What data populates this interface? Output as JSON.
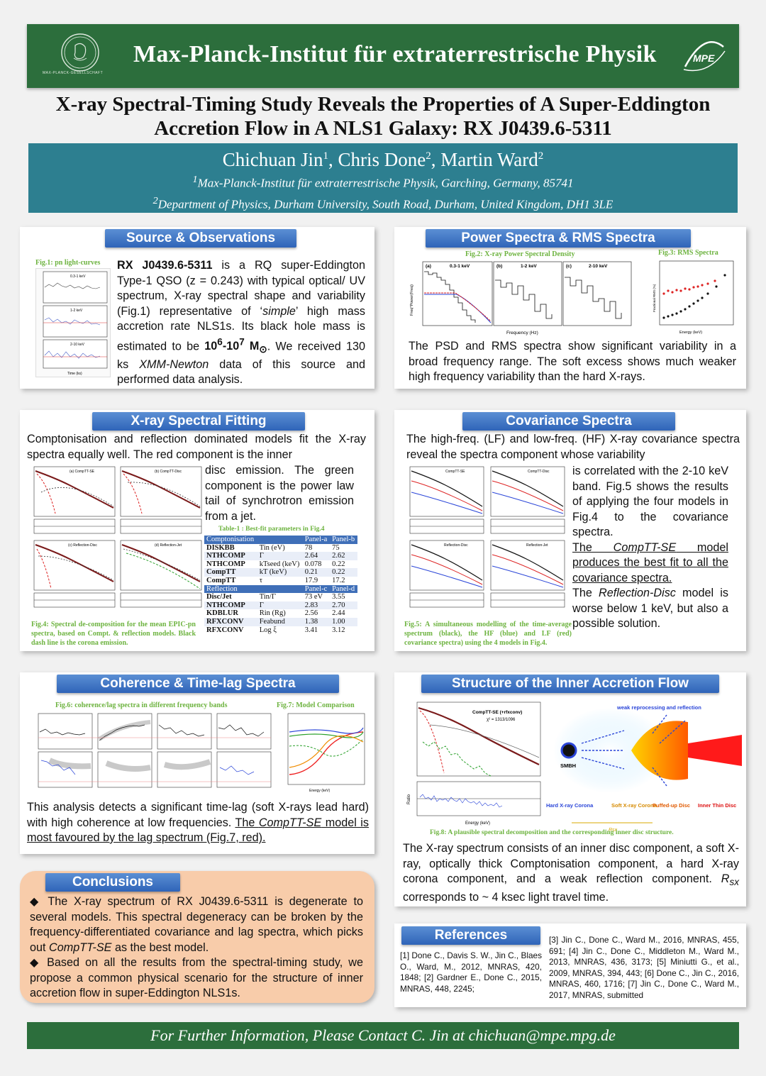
{
  "header": {
    "institute": "Max-Planck-Institut für extraterrestrische Physik",
    "mpg_small": "MAX-PLANCK-GESELLSCHAFT",
    "mpe_logo": "MPE"
  },
  "title": {
    "line1": "X-ray Spectral-Timing Study Reveals the Properties of A Super-Eddington",
    "line2": "Accretion Flow in A NLS1 Galaxy: RX J0439.6-5311"
  },
  "authors": {
    "a1": "Chichuan Jin",
    "a2": "Chris Done",
    "a3": "Martin Ward",
    "sup1": "1",
    "sup2": "2",
    "aff1": "Max-Planck-Institut für extraterrestrische Physik, Garching, Germany, 85741",
    "aff2": "Department of Physics, Durham University, South Road, Durham, United Kingdom, DH1 3LE"
  },
  "source": {
    "heading": "Source & Observations",
    "fig1_caption": "Fig.1: pn light-curves",
    "fig1_labels": [
      "0.3-1 keV",
      "1-2 keV",
      "2-10 keV",
      "Time (ks)"
    ],
    "t1": "RX J0439.6-5311",
    "t2": " is a RQ super-Eddington Type-1 QSO (z = 0.243) with typical optical/ UV spectrum, X-ray spectral shape and variability (Fig.1) representative of ‘",
    "t3": "simple",
    "t4": "’ high mass accretion rate NLS1s. Its black hole mass is estimated to be ",
    "t5": "10",
    "t5a": "6",
    "t5b": "-10",
    "t5c": "7",
    "t5d": " M",
    "t5e": "⊙",
    "t6": ". We received 130 ks ",
    "t7": "XMM-Newton",
    "t8": " data of this source and performed data analysis."
  },
  "power": {
    "heading": "Power Spectra & RMS Spectra",
    "fig2_caption": "Fig.2: X-ray Power Spectral Density",
    "fig3_caption": "Fig.3: RMS Spectra",
    "fig2_labels": [
      "(a)",
      "0.3-1 keV",
      "(b)",
      "1-2 keV",
      "(c)",
      "2-10 keV",
      "Frequency (Hz)",
      "Freq*Power(Freq)"
    ],
    "fig3_labels": [
      "Energy (keV)",
      "Fractional RMS (%)"
    ],
    "text": "The PSD and RMS spectra show significant variability in a broad frequency range. The soft excess shows much weaker high frequency variability than the hard X-rays."
  },
  "fitting": {
    "heading": "X-ray Spectral Fitting",
    "text1": "Comptonisation and reflection dominated models fit the X-ray spectra equally well. The red component is the inner",
    "text2": "disc emission. The green component is the power law tail of synchrotron emission from a jet.",
    "fig4_panels": [
      "(a) CompTT-SE",
      "(b) CompTT-Disc",
      "(c) Reflection-Disc",
      "(d) Reflection-Jet"
    ],
    "fig4_caption": "Fig.4: Spectral de-composition for the mean EPIC-pn spectra, based on Compt. & reflection models. Black dash line is the corona emission.",
    "table_caption": "Table-1 : Best-fit parameters in Fig.4",
    "table_rows": [
      {
        "h": true,
        "c": [
          "Comptonisation",
          "",
          "Panel-a",
          "Panel-b"
        ]
      },
      {
        "c": [
          "DISKBB",
          "Tin (eV)",
          "78",
          "75"
        ]
      },
      {
        "c": [
          "NTHCOMP",
          "Γ",
          "2.64",
          "2.62"
        ]
      },
      {
        "c": [
          "NTHCOMP",
          "kTseed (keV)",
          "0.078",
          "0.22"
        ]
      },
      {
        "c": [
          "CompTT",
          "kT (keV)",
          "0.21",
          "0.22"
        ]
      },
      {
        "c": [
          "CompTT",
          "τ",
          "17.9",
          "17.2"
        ]
      },
      {
        "h": true,
        "c": [
          "Reflection",
          "",
          "Panel-c",
          "Panel-d"
        ]
      },
      {
        "c": [
          "Disc/Jet",
          "Tin/Γ",
          "73 eV",
          "3.55"
        ]
      },
      {
        "c": [
          "NTHCOMP",
          "Γ",
          "2.83",
          "2.70"
        ]
      },
      {
        "c": [
          "KDBLUR",
          "Rin (Rg)",
          "2.56",
          "2.44"
        ]
      },
      {
        "c": [
          "RFXCONV",
          "Feabund",
          "1.38",
          "1.00"
        ]
      },
      {
        "c": [
          "RFXCONV",
          "Log ξ",
          "3.41",
          "3.12"
        ]
      }
    ]
  },
  "covariance": {
    "heading": "Covariance Spectra",
    "text1": "The high-freq. (LF) and low-freq. (HF) X-ray covariance spectra reveal the spectra component whose variability",
    "text2": "is correlated with the 2-10 keV band. Fig.5 shows the results of applying the four models in Fig.4 to the covariance spectra.",
    "u1": "The ",
    "u2": "CompTT-SE",
    "u3": " model produces the best fit to all the covariance spectra.",
    "r1": "The ",
    "r2": "Reflection-Disc",
    "r3": " model is worse below 1 keV, but also a possible solution.",
    "fig5_panels": [
      "CompTT-SE",
      "CompTT-Disc",
      "Reflection-Disc",
      "Reflection-Jet"
    ],
    "fig5_caption": "Fig.5: A simultaneous modelling of the time-average spectrum (black), the HF (blue) and LF (red) covariance spectra) using the 4 models in Fig.4."
  },
  "coherence": {
    "heading": "Coherence & Time-lag Spectra",
    "fig6_caption": "Fig.6: coherence/lag spectra in different frequency bands",
    "fig7_caption": "Fig.7: Model Comparison",
    "t1": "This analysis detects a significant time-lag (soft X-rays lead hard) with high coherence at low frequencies. ",
    "t2": "The ",
    "t3": "CompTT-SE",
    "t4": " model is most favoured by the lag spectrum (Fig.7, red)."
  },
  "structure": {
    "heading": "Structure of the Inner Accretion Flow",
    "fig8_caption": "Fig.8: A plausible spectral decomposition and the corresponding inner disc structure.",
    "spec_title": "CompTT-SE (+rfxconv)",
    "spec_chi": "χ² = 1313/1096",
    "labels": {
      "weak": "weak reprocessing and reflection",
      "smbh": "SMBH",
      "corona": "Hard X-ray Corona",
      "soft": "Soft X-ray Corona",
      "puffed": "Puffed-up Disc",
      "inner": "Inner Thin Disc",
      "rsx": "Rsx",
      "energy": "Energy (keV)",
      "ratio": "Ratio"
    },
    "t1": "The X-ray spectrum consists of an inner disc component, a soft X-ray, optically thick Comptonisation component, a hard X-ray corona component, and a weak reflection component. ",
    "t2": "R",
    "t3": "sx",
    "t4": " corresponds to ~ 4 ksec light travel time."
  },
  "conclusions": {
    "heading": "Conclusions",
    "p1a": "◆ The X-ray spectrum of RX J0439.6-5311 is degenerate to several models. This spectral degeneracy can be broken by the frequency-differentiated covariance and lag spectra, which picks out ",
    "p1b": "CompTT-SE",
    "p1c": " as the best model.",
    "p2": "◆ Based on all the results from the spectral-timing study, we propose a common physical scenario for the structure of inner accretion flow in super-Eddington NLS1s."
  },
  "references": {
    "heading": "References",
    "left": "[1] Done C., Davis S. W., Jin C., Blaes O., Ward, M., 2012, MNRAS, 420, 1848; [2] Gardner E., Done C., 2015, MNRAS, 448, 2245;",
    "right": "[3] Jin C., Done C., Ward M., 2016, MNRAS, 455, 691; [4] Jin C., Done C., Middleton M., Ward M., 2013, MNRAS, 436, 3173; [5] Miniutti G., et al., 2009, MNRAS, 394, 443; [6] Done C., Jin C., 2016, MNRAS, 460, 1716; [7] Jin C., Done C., Ward M., 2017, MNRAS, submitted"
  },
  "footer": {
    "text": "For Further Information, Please Contact C. Jin at chichuan@mpe.mpg.de"
  },
  "colors": {
    "green": "#2c6e3c",
    "teal": "#2d7f90",
    "blue": "#2f64b8",
    "caption_green": "#6db33f",
    "peach": "#f8ccaa"
  }
}
